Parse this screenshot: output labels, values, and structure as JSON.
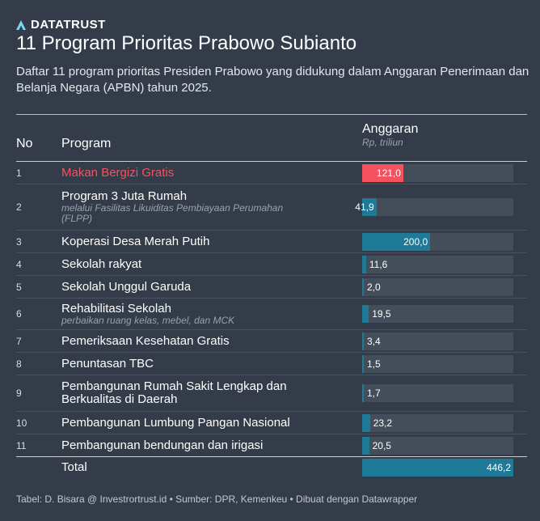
{
  "brand": {
    "name": "DATATRUST"
  },
  "title": "11 Program Prioritas Prabowo Subianto",
  "description": "Daftar 11 program prioritas Presiden Prabowo yang didukung dalam Anggaran Penerimaan dan Belanja Negara (APBN) tahun 2025.",
  "table": {
    "col_no": "No",
    "col_program": "Program",
    "col_budget": "Anggaran",
    "col_budget_unit": "Rp, triliun"
  },
  "colors": {
    "background": "#333c48",
    "bar": "#1f7a97",
    "highlight": "#f4525e",
    "track": "#444d5a"
  },
  "chart_data": {
    "type": "table",
    "title": "11 Program Prioritas Prabowo Subianto",
    "bar_max": 200.0,
    "rows": [
      {
        "no": "1",
        "program": "Makan Bergizi Gratis",
        "sub": "",
        "value": 121.0,
        "label": "121,0",
        "highlight": true
      },
      {
        "no": "2",
        "program": "Program 3 Juta Rumah",
        "sub": "melalui Fasilitas Likuiditas Pembiayaan Perumahan (FLPP)",
        "value": 41.9,
        "label": "41,9",
        "highlight": false
      },
      {
        "no": "3",
        "program": "Koperasi Desa Merah Putih",
        "sub": "",
        "value": 200.0,
        "label": "200,0",
        "highlight": false
      },
      {
        "no": "4",
        "program": "Sekolah rakyat",
        "sub": "",
        "value": 11.6,
        "label": "11,6",
        "highlight": false
      },
      {
        "no": "5",
        "program": "Sekolah Unggul Garuda",
        "sub": "",
        "value": 2.0,
        "label": "2,0",
        "highlight": false
      },
      {
        "no": "6",
        "program": "Rehabilitasi Sekolah",
        "sub": "perbaikan ruang kelas, mebel, dan MCK",
        "value": 19.5,
        "label": "19,5",
        "highlight": false
      },
      {
        "no": "7",
        "program": "Pemeriksaan Kesehatan Gratis",
        "sub": "",
        "value": 3.4,
        "label": "3,4",
        "highlight": false
      },
      {
        "no": "8",
        "program": "Penuntasan TBC",
        "sub": "",
        "value": 1.5,
        "label": "1,5",
        "highlight": false
      },
      {
        "no": "9",
        "program": "Pembangunan Rumah Sakit Lengkap dan Berkualitas di Daerah",
        "sub": "",
        "value": 1.7,
        "label": "1,7",
        "highlight": false
      },
      {
        "no": "10",
        "program": "Pembangunan Lumbung Pangan Nasional",
        "sub": "",
        "value": 23.2,
        "label": "23,2",
        "highlight": false
      },
      {
        "no": "11",
        "program": "Pembangunan bendungan dan irigasi",
        "sub": "",
        "value": 20.5,
        "label": "20,5",
        "highlight": false
      }
    ],
    "total": {
      "label": "Total",
      "value": 446.2,
      "value_label": "446,2"
    }
  },
  "footer": "Tabel: D. Bisara @ Investrortrust.id • Sumber: DPR, Kemenkeu • Dibuat dengan Datawrapper"
}
